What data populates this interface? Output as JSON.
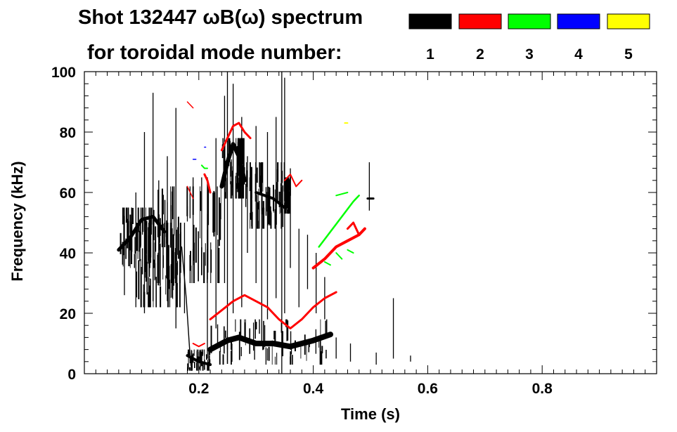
{
  "chart_data": {
    "type": "spectrogram",
    "title_line1": "Shot 132447 ωB(ω) spectrum",
    "title_line2": "for toroidal mode number:",
    "xlabel": "Time (s)",
    "ylabel": "Frequency (kHz)",
    "xlim": [
      0.0,
      1.0
    ],
    "ylim": [
      0,
      100
    ],
    "x_ticks": [
      0.2,
      0.4,
      0.6,
      0.8
    ],
    "x_tick_labels": [
      "0.2",
      "0.4",
      "0.6",
      "0.8"
    ],
    "y_ticks": [
      0,
      20,
      40,
      60,
      80,
      100
    ],
    "y_tick_labels": [
      "0",
      "20",
      "40",
      "60",
      "80",
      "100"
    ],
    "legend": [
      {
        "label": "1",
        "color": "#000000"
      },
      {
        "label": "2",
        "color": "#ff0000"
      },
      {
        "label": "3",
        "color": "#00ff00"
      },
      {
        "label": "4",
        "color": "#0000ff"
      },
      {
        "label": "5",
        "color": "#ffff00"
      }
    ],
    "modes": [
      {
        "mode": 1,
        "color": "#000000",
        "blobs": [
          {
            "t": [
              0.06,
              0.14
            ],
            "f": [
              35,
              55
            ]
          },
          {
            "t": [
              0.09,
              0.17
            ],
            "f": [
              22,
              50
            ]
          },
          {
            "t": [
              0.12,
              0.24
            ],
            "f": [
              30,
              62
            ]
          },
          {
            "t": [
              0.18,
              0.22
            ],
            "f": [
              1,
              8
            ]
          },
          {
            "t": [
              0.22,
              0.43
            ],
            "f": [
              3,
              18
            ]
          },
          {
            "t": [
              0.24,
              0.28
            ],
            "f": [
              58,
              78
            ]
          },
          {
            "t": [
              0.28,
              0.35
            ],
            "f": [
              48,
              70
            ]
          },
          {
            "t": [
              0.35,
              0.36
            ],
            "f": [
              53,
              65
            ]
          }
        ],
        "tracks": [
          {
            "t": [
              0.06,
              0.08,
              0.1,
              0.12,
              0.14
            ],
            "f": [
              41,
              45,
              51,
              52,
              47
            ],
            "width": 5
          },
          {
            "t": [
              0.17,
              0.178,
              0.185
            ],
            "f": [
              42,
              25,
              5
            ],
            "width": 1.4
          },
          {
            "t": [
              0.18,
              0.2,
              0.22
            ],
            "f": [
              6,
              4,
              3
            ],
            "width": 4
          },
          {
            "t": [
              0.22,
              0.25,
              0.27,
              0.3,
              0.33,
              0.36,
              0.4,
              0.43
            ],
            "f": [
              8,
              11,
              12,
              10,
              10,
              9,
              11,
              13
            ],
            "width": 8
          },
          {
            "t": [
              0.24,
              0.25,
              0.26,
              0.27,
              0.28
            ],
            "f": [
              62,
              70,
              76,
              72,
              64
            ],
            "width": 6
          },
          {
            "t": [
              0.3,
              0.33,
              0.35
            ],
            "f": [
              60,
              58,
              55
            ],
            "width": 4
          },
          {
            "t": [
              0.495,
              0.505
            ],
            "f": [
              58,
              58
            ],
            "width": 3
          }
        ],
        "spikes": [
          {
            "t": 0.07,
            "f": [
              26,
              55
            ]
          },
          {
            "t": 0.09,
            "f": [
              22,
              60
            ]
          },
          {
            "t": 0.105,
            "f": [
              20,
              80
            ]
          },
          {
            "t": 0.12,
            "f": [
              24,
              93
            ]
          },
          {
            "t": 0.13,
            "f": [
              30,
              64
            ]
          },
          {
            "t": 0.145,
            "f": [
              24,
              72
            ]
          },
          {
            "t": 0.16,
            "f": [
              15,
              88
            ]
          },
          {
            "t": 0.175,
            "f": [
              20,
              50
            ]
          },
          {
            "t": 0.19,
            "f": [
              36,
              65
            ]
          },
          {
            "t": 0.205,
            "f": [
              38,
              65
            ]
          },
          {
            "t": 0.215,
            "f": [
              5,
              65
            ]
          },
          {
            "t": 0.23,
            "f": [
              15,
              78
            ]
          },
          {
            "t": 0.245,
            "f": [
              30,
              92
            ]
          },
          {
            "t": 0.25,
            "f": [
              8,
              100
            ]
          },
          {
            "t": 0.26,
            "f": [
              20,
              96
            ]
          },
          {
            "t": 0.275,
            "f": [
              22,
              85
            ]
          },
          {
            "t": 0.285,
            "f": [
              40,
              72
            ]
          },
          {
            "t": 0.3,
            "f": [
              30,
              82
            ]
          },
          {
            "t": 0.31,
            "f": [
              10,
              65
            ]
          },
          {
            "t": 0.32,
            "f": [
              18,
              80
            ]
          },
          {
            "t": 0.335,
            "f": [
              25,
              85
            ]
          },
          {
            "t": 0.345,
            "f": [
              0,
              100
            ]
          },
          {
            "t": 0.35,
            "f": [
              20,
              98
            ]
          },
          {
            "t": 0.36,
            "f": [
              35,
              68
            ]
          },
          {
            "t": 0.375,
            "f": [
              22,
              48
            ]
          },
          {
            "t": 0.39,
            "f": [
              28,
              46
            ]
          },
          {
            "t": 0.405,
            "f": [
              20,
              40
            ]
          },
          {
            "t": 0.42,
            "f": [
              18,
              32
            ]
          },
          {
            "t": 0.44,
            "f": [
              5,
              12
            ]
          },
          {
            "t": 0.465,
            "f": [
              4,
              10
            ]
          },
          {
            "t": 0.498,
            "f": [
              54,
              70
            ]
          },
          {
            "t": 0.51,
            "f": [
              3,
              7
            ]
          },
          {
            "t": 0.54,
            "f": [
              5,
              25
            ]
          },
          {
            "t": 0.57,
            "f": [
              4,
              6
            ]
          }
        ]
      },
      {
        "mode": 2,
        "color": "#ff0000",
        "tracks": [
          {
            "t": [
              0.19,
              0.2,
              0.21
            ],
            "f": [
              10,
              9,
              10
            ],
            "width": 2
          },
          {
            "t": [
              0.22,
              0.24,
              0.26,
              0.28,
              0.3,
              0.32,
              0.34,
              0.36,
              0.38,
              0.4,
              0.42,
              0.44
            ],
            "f": [
              18,
              21,
              24,
              26,
              24,
              22,
              18,
              15,
              18,
              22,
              25,
              27
            ],
            "width": 3
          },
          {
            "t": [
              0.21,
              0.215,
              0.22
            ],
            "f": [
              66,
              64,
              60
            ],
            "width": 3
          },
          {
            "t": [
              0.24,
              0.25,
              0.26,
              0.27,
              0.28,
              0.29
            ],
            "f": [
              74,
              78,
              82,
              83,
              80,
              78
            ],
            "width": 3
          },
          {
            "t": [
              0.35,
              0.36,
              0.37,
              0.38
            ],
            "f": [
              64,
              66,
              62,
              64
            ],
            "width": 2
          },
          {
            "t": [
              0.4,
              0.42,
              0.44,
              0.46,
              0.48,
              0.49
            ],
            "f": [
              35,
              38,
              42,
              44,
              46,
              48
            ],
            "width": 4
          },
          {
            "t": [
              0.46,
              0.47,
              0.48
            ],
            "f": [
              48,
              50,
              46
            ],
            "width": 3
          },
          {
            "t": [
              0.18,
              0.19
            ],
            "f": [
              62,
              58
            ],
            "width": 1.5
          },
          {
            "t": [
              0.18,
              0.19
            ],
            "f": [
              90,
              88
            ],
            "width": 1.5
          }
        ]
      },
      {
        "mode": 3,
        "color": "#00ff00",
        "tracks": [
          {
            "t": [
              0.205,
              0.21,
              0.215
            ],
            "f": [
              69,
              68,
              68
            ],
            "width": 2
          },
          {
            "t": [
              0.41,
              0.43,
              0.45,
              0.47,
              0.48
            ],
            "f": [
              42,
              47,
              52,
              57,
              59
            ],
            "width": 2.5
          },
          {
            "t": [
              0.42,
              0.43
            ],
            "f": [
              37,
              36
            ],
            "width": 2
          },
          {
            "t": [
              0.44,
              0.45
            ],
            "f": [
              40,
              38
            ],
            "width": 2
          },
          {
            "t": [
              0.46,
              0.47
            ],
            "f": [
              41,
              40
            ],
            "width": 2
          },
          {
            "t": [
              0.44,
              0.46
            ],
            "f": [
              59,
              60
            ],
            "width": 2
          }
        ]
      },
      {
        "mode": 4,
        "color": "#0000ff",
        "tracks": [
          {
            "t": [
              0.19,
              0.195
            ],
            "f": [
              71,
              71
            ],
            "width": 1.5
          },
          {
            "t": [
              0.21,
              0.212
            ],
            "f": [
              75,
              75
            ],
            "width": 1.5
          }
        ]
      },
      {
        "mode": 5,
        "color": "#ffff00",
        "tracks": [
          {
            "t": [
              0.455,
              0.46
            ],
            "f": [
              83,
              83
            ],
            "width": 2
          }
        ]
      }
    ]
  }
}
